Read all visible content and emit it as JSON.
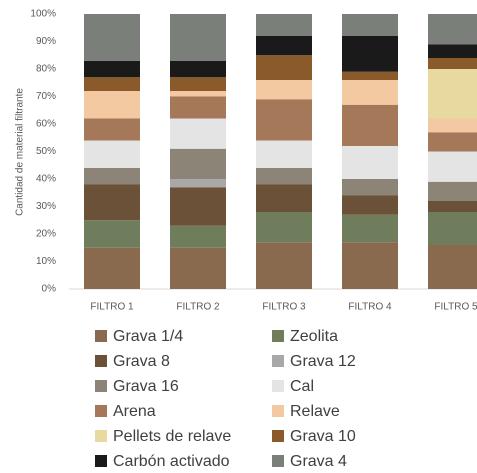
{
  "chart_data": {
    "type": "bar",
    "stacked": true,
    "y_label": "Cantidad de material filtrante",
    "categories": [
      "FILTRO 1",
      "FILTRO 2",
      "FILTRO 3",
      "FILTRO 4",
      "FILTRO 5"
    ],
    "series": [
      {
        "name": "Grava 1/4",
        "color": "#8a6a4e",
        "values": [
          15,
          15,
          17,
          17,
          16
        ]
      },
      {
        "name": "Zeolita",
        "color": "#6f7d5c",
        "values": [
          10,
          8,
          11,
          10,
          12
        ]
      },
      {
        "name": "Grava 8",
        "color": "#6b5138",
        "values": [
          13,
          14,
          10,
          7,
          4
        ]
      },
      {
        "name": "Grava 12",
        "color": "#a8a8a8",
        "values": [
          0,
          3,
          0,
          0,
          0
        ]
      },
      {
        "name": "Grava 16",
        "color": "#8c8577",
        "values": [
          6,
          11,
          6,
          6,
          7
        ]
      },
      {
        "name": "Cal",
        "color": "#e4e4e4",
        "values": [
          10,
          11,
          10,
          12,
          11
        ]
      },
      {
        "name": "Arena",
        "color": "#a6785a",
        "values": [
          8,
          8,
          15,
          15,
          7
        ]
      },
      {
        "name": "Relave",
        "color": "#f2c9a0",
        "values": [
          10,
          2,
          7,
          9,
          5
        ]
      },
      {
        "name": "Pellets de relave",
        "color": "#e8d9a0",
        "values": [
          0,
          0,
          0,
          0,
          18
        ]
      },
      {
        "name": "Grava 10",
        "color": "#8b5a2b",
        "values": [
          5,
          5,
          9,
          3,
          4
        ]
      },
      {
        "name": "Carbón activado",
        "color": "#1a1a1a",
        "values": [
          6,
          6,
          7,
          13,
          5
        ]
      },
      {
        "name": "Grava 4",
        "color": "#7b7f7a",
        "values": [
          17,
          17,
          8,
          8,
          11
        ]
      }
    ],
    "ylim": [
      0,
      100
    ],
    "yticks": [
      {
        "value": 0,
        "label": "0%"
      },
      {
        "value": 10,
        "label": "10%"
      },
      {
        "value": 20,
        "label": "20%"
      },
      {
        "value": 30,
        "label": "30%"
      },
      {
        "value": 40,
        "label": "40%"
      },
      {
        "value": 50,
        "label": "50%"
      },
      {
        "value": 60,
        "label": "60%"
      },
      {
        "value": 70,
        "label": "70%"
      },
      {
        "value": 80,
        "label": "80%"
      },
      {
        "value": 90,
        "label": "90%"
      },
      {
        "value": 100,
        "label": "100%"
      }
    ],
    "grid": false,
    "legend": "bottom"
  }
}
